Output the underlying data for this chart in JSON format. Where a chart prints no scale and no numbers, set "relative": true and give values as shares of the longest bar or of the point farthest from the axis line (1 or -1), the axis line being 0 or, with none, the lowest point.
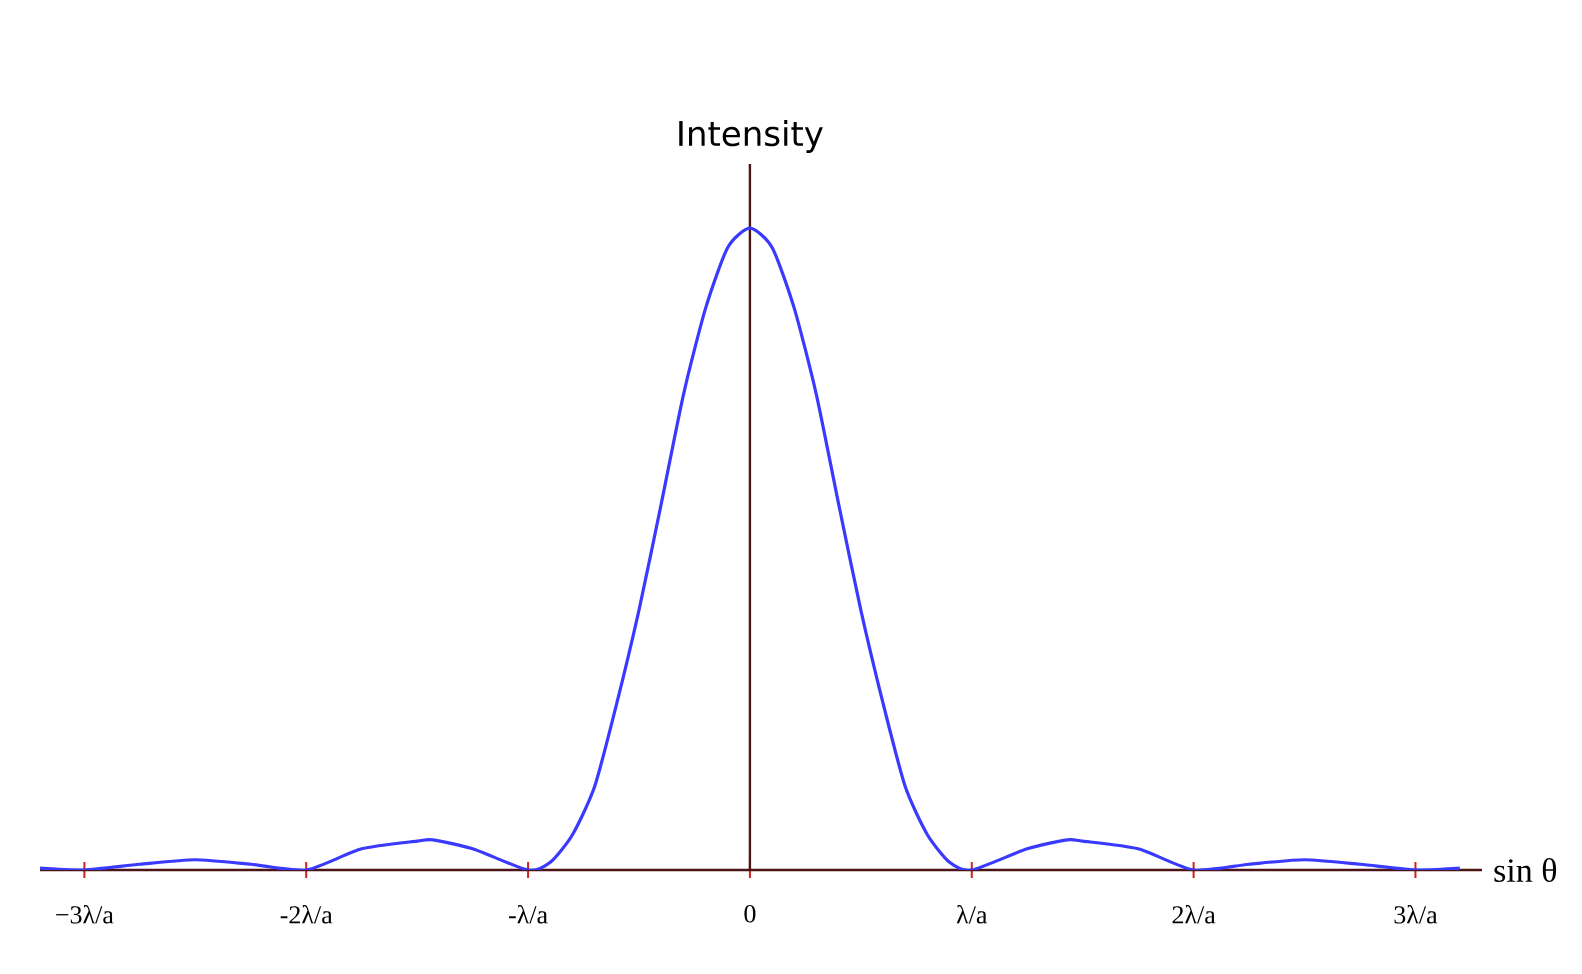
{
  "chart_data": {
    "type": "line",
    "xlabel": "sin θ",
    "ylabel": "Intensity",
    "relative": true,
    "xlim": [
      -3.2,
      3.3
    ],
    "xticks": [
      {
        "value": -3,
        "label": "−3λ/a"
      },
      {
        "value": -2,
        "label": "-2λ/a"
      },
      {
        "value": -1,
        "label": "-λ/a"
      },
      {
        "value": 0,
        "label": "0"
      },
      {
        "value": 1,
        "label": "λ/a"
      },
      {
        "value": 2,
        "label": "2λ/a"
      },
      {
        "value": 3,
        "label": "3λ/a"
      }
    ],
    "series": [
      {
        "color": "#3a3aff",
        "x": [
          -3.2,
          -3,
          -2.75,
          -2.5,
          -2.25,
          -2,
          -1.75,
          -1.5,
          -1.43,
          -1.25,
          -1,
          -0.9,
          -0.8,
          -0.7,
          -0.6,
          -0.5,
          -0.4,
          -0.3,
          -0.2,
          -0.1,
          0,
          0.1,
          0.2,
          0.3,
          0.4,
          0.5,
          0.6,
          0.7,
          0.8,
          0.9,
          1,
          1.25,
          1.43,
          1.5,
          1.75,
          2,
          2.25,
          2.5,
          2.75,
          3,
          3.2
        ],
        "values": [
          0.003,
          0,
          0.009,
          0.016,
          0.009,
          0,
          0.033,
          0.045,
          0.047,
          0.033,
          0,
          0.012,
          0.055,
          0.13,
          0.26,
          0.405,
          0.57,
          0.74,
          0.875,
          0.97,
          1,
          0.97,
          0.875,
          0.74,
          0.57,
          0.405,
          0.26,
          0.13,
          0.055,
          0.012,
          0,
          0.033,
          0.047,
          0.045,
          0.033,
          0,
          0.009,
          0.016,
          0.009,
          0,
          0.003
        ]
      }
    ]
  }
}
